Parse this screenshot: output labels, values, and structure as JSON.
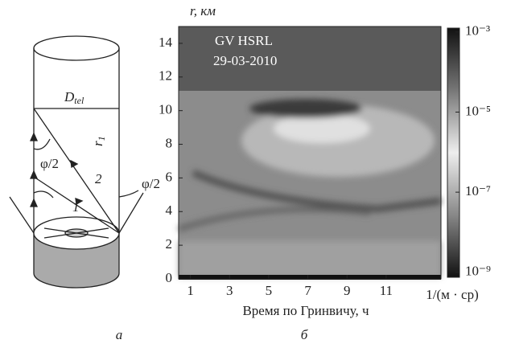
{
  "diagram": {
    "d_tel": "D",
    "d_tel_sub": "tel",
    "phi_left": "φ/2",
    "phi_right": "φ/2",
    "r1": "r",
    "r1_sub": "1",
    "ray1": "1",
    "ray2": "2",
    "caption": "а"
  },
  "chart_data": {
    "type": "heatmap",
    "annotation": [
      "GV HSRL",
      "29-03-2010"
    ],
    "y_label": "r, км",
    "x_label": "Время по Гринвичу, ч",
    "colorbar_label": "1/(м · ср)",
    "caption": "б",
    "xlim": [
      0.4,
      13.8
    ],
    "xticks": [
      1,
      3,
      5,
      7,
      9,
      11
    ],
    "ylim": [
      0,
      15
    ],
    "yticks": [
      0,
      2,
      4,
      6,
      8,
      10,
      12,
      14
    ],
    "clim": [
      7.5e-10,
      0.00125
    ],
    "log_scale": true,
    "cticks": [
      {
        "value": 0.001,
        "label": "10⁻³"
      },
      {
        "value": 1e-05,
        "label": "10⁻⁵"
      },
      {
        "value": 1e-07,
        "label": "10⁻⁷"
      },
      {
        "value": 1e-09,
        "label": "10⁻⁹"
      }
    ]
  }
}
